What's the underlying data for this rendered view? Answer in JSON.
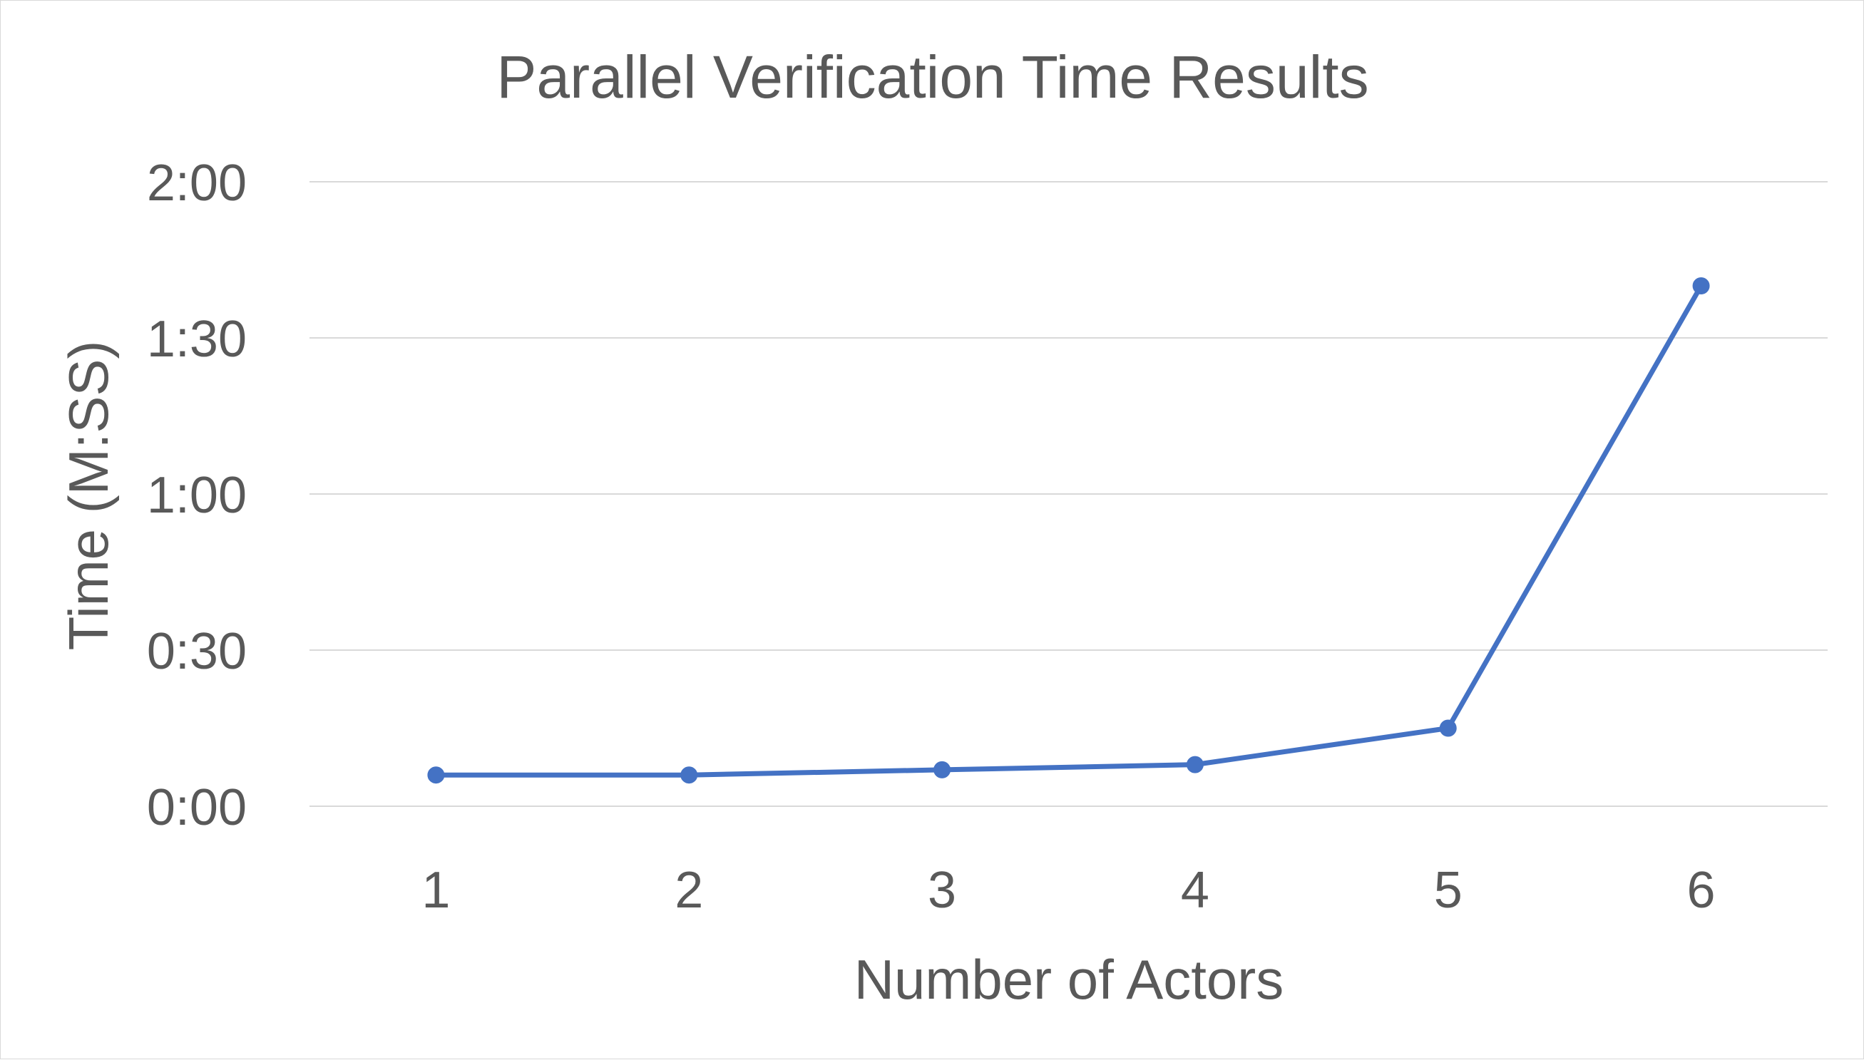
{
  "chart_data": {
    "type": "line",
    "title": "Parallel Verification Time Results",
    "xlabel": "Number of Actors",
    "ylabel": "Time (M:SS)",
    "categories": [
      "1",
      "2",
      "3",
      "4",
      "5",
      "6"
    ],
    "series": [
      {
        "values_seconds": [
          6,
          6,
          7,
          8,
          15,
          100
        ],
        "color": "#4472c4"
      }
    ],
    "ylim_seconds": [
      0,
      120
    ],
    "y_ticks": [
      {
        "seconds": 0,
        "label": "0:00"
      },
      {
        "seconds": 30,
        "label": "0:30"
      },
      {
        "seconds": 60,
        "label": "1:00"
      },
      {
        "seconds": 90,
        "label": "1:30"
      },
      {
        "seconds": 120,
        "label": "2:00"
      }
    ],
    "grid": true,
    "legend": "none"
  }
}
